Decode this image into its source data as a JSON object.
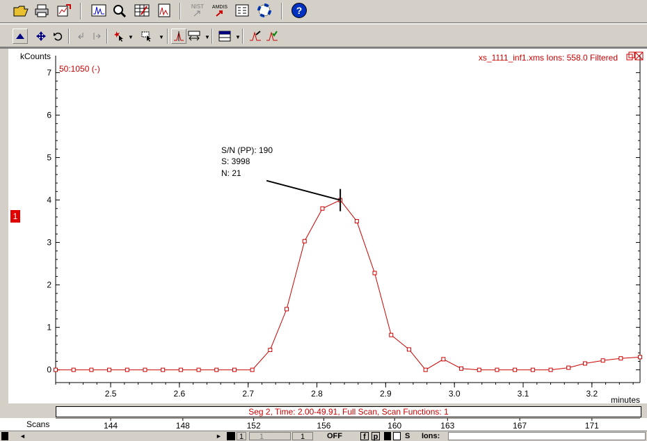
{
  "toolbar_top": {
    "icons": [
      "open-folder-icon",
      "print-icon",
      "edit-chart-icon",
      "chromatogram-icon",
      "search-spectrum-icon",
      "table-icon",
      "report-icon",
      "nist-icon",
      "amdis-icon",
      "list-icon",
      "lifebuoy-icon",
      "help-icon"
    ],
    "nist_label": "NIST",
    "amdis_label": "AMDIS",
    "help_label": "?"
  },
  "toolbar_plot": {
    "icons": [
      "up-arrow-icon",
      "move-icon",
      "undo-icon",
      "prev-icon",
      "next-icon",
      "cursor-star-icon",
      "cursor-box-icon",
      "peak-icon",
      "spectrum-compare-icon",
      "layout-icon",
      "integrate-icon",
      "check-peak-icon"
    ]
  },
  "plot": {
    "y_unit": "kCounts",
    "mass_range": "50:1050 (-)",
    "file_label": "xs_1111_inf1.xms Ions: 558.0 Filtered",
    "x_unit": "minutes",
    "annotation": {
      "line1": "S/N (PP): 190",
      "line2": "S: 3998",
      "line3": "N: 21"
    },
    "trace_marker": "1",
    "colors": {
      "trace": "#cc0000",
      "axis": "#000000",
      "label_red": "#cc0000"
    }
  },
  "chart_data": {
    "type": "line",
    "x_label": "minutes",
    "y_label": "kCounts",
    "xlim": [
      2.42,
      3.27
    ],
    "ylim": [
      -0.3,
      7.4
    ],
    "x_ticks": [
      2.5,
      2.6,
      2.7,
      2.8,
      2.9,
      3.0,
      3.1,
      3.2
    ],
    "x_tick_labels": [
      "2.5",
      "2.6",
      "2.7",
      "2.8",
      "2.9",
      "3.0",
      "3.1",
      "3.2"
    ],
    "y_ticks": [
      0,
      1,
      2,
      3,
      4,
      5,
      6,
      7
    ],
    "y_tick_labels": [
      "0",
      "1",
      "2",
      "3",
      "4",
      "5",
      "6",
      "7"
    ],
    "scan_ticks": [
      {
        "x": 2.5,
        "label": "144"
      },
      {
        "x": 2.605,
        "label": "148"
      },
      {
        "x": 2.708,
        "label": "152"
      },
      {
        "x": 2.81,
        "label": "156"
      },
      {
        "x": 2.913,
        "label": "160"
      },
      {
        "x": 2.99,
        "label": "163"
      },
      {
        "x": 3.095,
        "label": "167"
      },
      {
        "x": 3.2,
        "label": "171"
      }
    ],
    "series": [
      {
        "x": [
          2.42,
          2.446,
          2.472,
          2.498,
          2.524,
          2.55,
          2.576,
          2.602,
          2.628,
          2.654,
          2.68,
          2.706,
          2.732,
          2.756,
          2.782,
          2.808,
          2.834,
          2.858,
          2.884,
          2.908,
          2.934,
          2.958,
          2.984,
          3.01,
          3.036,
          3.062,
          3.088,
          3.114,
          3.14,
          3.166,
          3.19,
          3.216,
          3.242,
          3.27
        ],
        "y": [
          0.0,
          0.0,
          0.0,
          0.0,
          0.0,
          0.0,
          0.0,
          0.0,
          0.0,
          0.0,
          0.0,
          0.0,
          0.47,
          1.43,
          3.03,
          3.8,
          3.998,
          3.5,
          2.28,
          0.82,
          0.48,
          0.0,
          0.25,
          0.03,
          0.0,
          0.0,
          0.0,
          0.0,
          0.0,
          0.05,
          0.15,
          0.22,
          0.27,
          0.3
        ]
      }
    ],
    "peak": {
      "x": 2.834,
      "y": 3.998
    }
  },
  "status": {
    "segment_text": "Seg 2, Time: 2.00-49.91, Full Scan, Scan Functions: 1",
    "scans_label": "Scans"
  },
  "bottom_bar": {
    "page_first": "1",
    "page_current": "1",
    "off_label": "OFF",
    "f_label": "f",
    "p_label": "p",
    "s_label": "S",
    "ions_label": "Ions:",
    "ions_value": ""
  }
}
